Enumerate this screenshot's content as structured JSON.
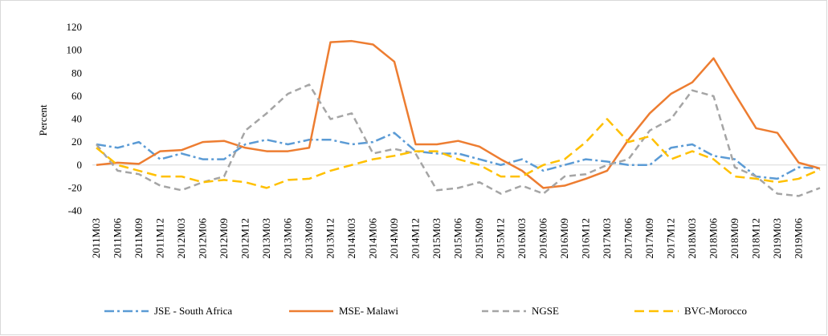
{
  "chart_data": {
    "type": "line",
    "y_label": "Percent",
    "categories": [
      "2011M03",
      "2011M06",
      "2011M09",
      "2011M12",
      "2012M03",
      "2012M06",
      "2012M09",
      "2012M12",
      "2013M03",
      "2013M06",
      "2013M09",
      "2013M12",
      "2014M03",
      "2014M06",
      "2014M09",
      "2014M12",
      "2015M03",
      "2015M06",
      "2015M09",
      "2015M12",
      "2016M03",
      "2016M06",
      "2016M09",
      "2016M12",
      "2017M03",
      "2017M06",
      "2017M09",
      "2017M12",
      "2018M03",
      "2018M06",
      "2018M09",
      "2018M12",
      "2019M03",
      "2019M06",
      null
    ],
    "series": [
      {
        "name": "JSE - South Africa",
        "color": "#5b9bd5",
        "dash": "12 4 3 4",
        "values": [
          18,
          15,
          20,
          5,
          10,
          5,
          5,
          18,
          22,
          18,
          22,
          22,
          18,
          20,
          28,
          12,
          10,
          10,
          5,
          0,
          5,
          -5,
          0,
          5,
          3,
          0,
          0,
          15,
          18,
          8,
          5,
          -10,
          -12,
          -2,
          -3
        ]
      },
      {
        "name": "MSE- Malawi",
        "color": "#ed7d31",
        "dash": "none",
        "values": [
          0,
          2,
          1,
          12,
          13,
          20,
          21,
          15,
          12,
          12,
          15,
          107,
          108,
          105,
          90,
          18,
          18,
          21,
          16,
          5,
          -5,
          -20,
          -18,
          -12,
          -5,
          22,
          45,
          62,
          72,
          93,
          62,
          32,
          28,
          2,
          -3
        ]
      },
      {
        "name": "NGSE",
        "color": "#a5a5a5",
        "dash": "8 5",
        "values": [
          18,
          -5,
          -8,
          -18,
          -22,
          -15,
          -10,
          30,
          45,
          62,
          70,
          40,
          45,
          10,
          14,
          10,
          -22,
          -20,
          -15,
          -25,
          -18,
          -25,
          -10,
          -8,
          0,
          5,
          30,
          40,
          65,
          60,
          -2,
          -10,
          -25,
          -27,
          -20
        ]
      },
      {
        "name": "BVC-Morocco",
        "color": "#ffc000",
        "dash": "12 6",
        "values": [
          15,
          0,
          -5,
          -10,
          -10,
          -15,
          -13,
          -15,
          -20,
          -13,
          -12,
          -5,
          0,
          5,
          8,
          12,
          12,
          5,
          0,
          -10,
          -10,
          0,
          5,
          20,
          40,
          20,
          25,
          5,
          12,
          5,
          -10,
          -12,
          -15,
          -12,
          -4
        ]
      }
    ],
    "ylim": [
      -40,
      120
    ],
    "yticks": [
      -40,
      -20,
      0,
      20,
      40,
      60,
      80,
      100,
      120
    ],
    "legend": "bottom"
  }
}
